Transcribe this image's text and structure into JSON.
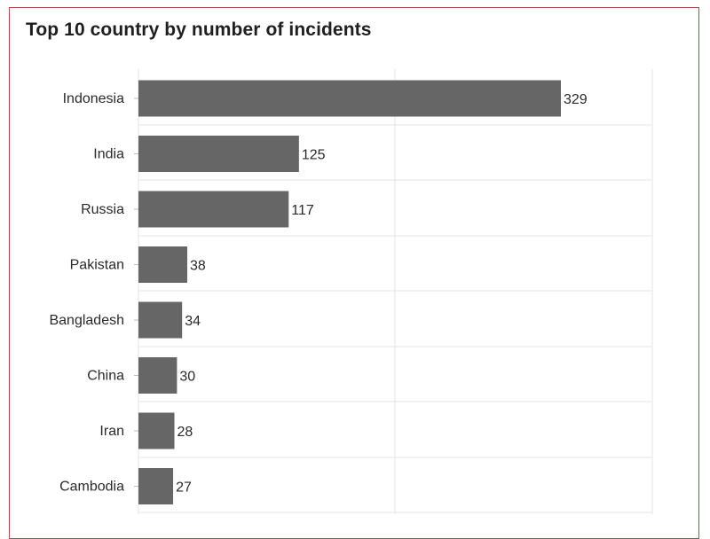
{
  "chart_data": {
    "type": "bar",
    "orientation": "horizontal",
    "title": "Top 10 country by number of incidents",
    "categories": [
      "Indonesia",
      "India",
      "Russia",
      "Pakistan",
      "Bangladesh",
      "China",
      "Iran",
      "Cambodia"
    ],
    "values": [
      329,
      125,
      117,
      38,
      34,
      30,
      28,
      27
    ],
    "xlim": [
      0,
      329
    ],
    "grid": true,
    "bar_color": "#666666",
    "grid_color": "#e4e4e4",
    "border_color": "#b0484e"
  }
}
